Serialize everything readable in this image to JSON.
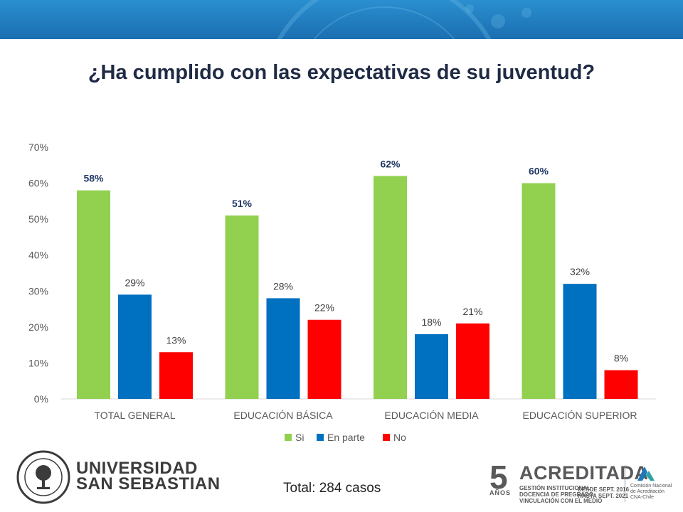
{
  "title": "¿Ha cumplido con las expectativas de su juventud?",
  "total_label": "Total: 284 casos",
  "university": {
    "line1": "UNIVERSIDAD",
    "line2": "SAN SEBASTIAN"
  },
  "accreditation": {
    "years": "5",
    "years_label": "AÑOS",
    "word": "ACREDITADA",
    "areas": [
      "GESTIÓN INSTITUCIONAL",
      "DOCENCIA DE PREGRADO",
      "VINCULACIÓN CON EL MEDIO"
    ],
    "dates": [
      "DESDE SEPT. 2016",
      "HASTA SEPT. 2021"
    ],
    "agency": [
      "Comisión Nacional",
      "de Acreditación",
      "CNA-Chile"
    ]
  },
  "colors": {
    "Si": "#92d050",
    "En parte": "#0070c0",
    "No": "#ff0000",
    "banner": "#1f78b9"
  },
  "chart_data": {
    "type": "bar",
    "title": "¿Ha cumplido con las expectativas de su juventud?",
    "categories": [
      "TOTAL GENERAL",
      "EDUCACIÓN BÁSICA",
      "EDUCACIÓN MEDIA",
      "EDUCACIÓN SUPERIOR"
    ],
    "series": [
      {
        "name": "Si",
        "values": [
          58,
          51,
          62,
          60
        ],
        "color": "#92d050"
      },
      {
        "name": "En parte",
        "values": [
          29,
          28,
          18,
          32
        ],
        "color": "#0070c0"
      },
      {
        "name": "No",
        "values": [
          13,
          22,
          21,
          8
        ],
        "color": "#ff0000"
      }
    ],
    "data_labels": [
      [
        "58%",
        "51%",
        "62%",
        "60%"
      ],
      [
        "29%",
        "28%",
        "18%",
        "32%"
      ],
      [
        "13%",
        "22%",
        "21%",
        "8%"
      ]
    ],
    "yticks": [
      "0%",
      "10%",
      "20%",
      "30%",
      "40%",
      "50%",
      "60%",
      "70%"
    ],
    "ylim": [
      0,
      70
    ],
    "grid": false,
    "legend": "bottom"
  }
}
